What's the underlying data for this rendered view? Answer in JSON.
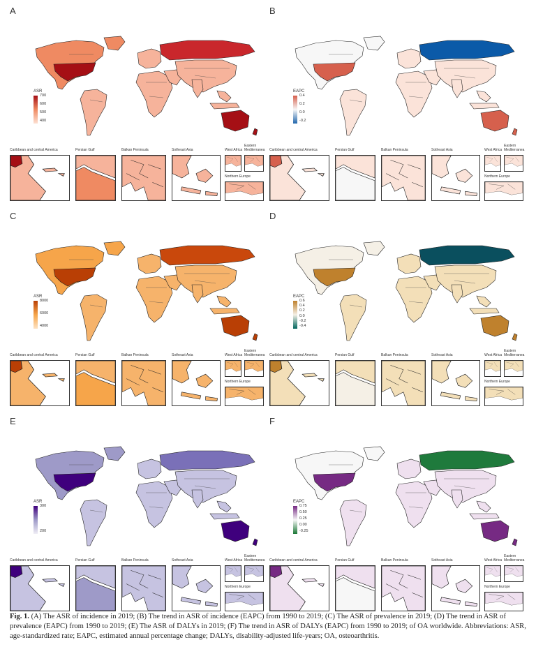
{
  "panels": [
    {
      "letter": "A",
      "legend_title": "ASR",
      "ticks": [
        "700",
        "600",
        "500",
        "400"
      ],
      "colors": {
        "low": "#fde0d2",
        "mid": "#ef8a62",
        "high": "#a50f15",
        "land": "#f6b39b",
        "north": "#c9272c"
      }
    },
    {
      "letter": "B",
      "legend_title": "EAPC",
      "ticks": [
        "0.4",
        "0.2",
        "0.0",
        "-0.2"
      ],
      "colors": {
        "low": "#2166ac",
        "mid": "#f7f7f7",
        "high": "#d6604d",
        "land": "#fbe3d9",
        "north": "#0b5aa8"
      }
    },
    {
      "letter": "C",
      "legend_title": "ASR",
      "ticks": [
        "8000",
        "6000",
        "4000"
      ],
      "colors": {
        "low": "#fde3c3",
        "mid": "#f6a54a",
        "high": "#b93f05",
        "land": "#f6b36b",
        "north": "#c9480c"
      }
    },
    {
      "letter": "D",
      "legend_title": "EAPC",
      "ticks": [
        "0.6",
        "0.4",
        "0.2",
        "0.0",
        "-0.2",
        "-0.4"
      ],
      "colors": {
        "low": "#01665e",
        "mid": "#f5f0e6",
        "high": "#bf812d",
        "land": "#f3dfb8",
        "north": "#0a4f5e"
      }
    },
    {
      "letter": "E",
      "legend_title": "ASR",
      "ticks": [
        "300",
        "200"
      ],
      "colors": {
        "low": "#efedf5",
        "mid": "#9e9ac8",
        "high": "#3f007d",
        "land": "#c6c3e1",
        "north": "#7a70b8"
      }
    },
    {
      "letter": "F",
      "legend_title": "EAPC",
      "ticks": [
        "0.75",
        "0.50",
        "0.25",
        "0.00",
        "-0.25"
      ],
      "colors": {
        "low": "#1b7837",
        "mid": "#f7f7f7",
        "high": "#762a83",
        "land": "#efe0ef",
        "north": "#1f7a3c"
      }
    }
  ],
  "insets": {
    "caribbean": "Caribbean and central America",
    "persian_gulf": "Persian Gulf",
    "balkan": "Balkan Peninsula",
    "southeast_asia": "Sotheast Asia",
    "west_africa": "West Africa",
    "eastern_med": "Eastern Mediterranea",
    "northern_europe": "Northern Europe"
  },
  "caption": {
    "label": "Fig. 1.",
    "text": "(A) The ASR of incidence in 2019; (B) The trend in ASR of incidence (EAPC) from 1990 to 2019; (C) The ASR of prevalence in 2019; (D) The trend in ASR of prevalence (EAPC) from 1990 to 2019; (E) The ASR of DALYs in 2019; (F) The trend in ASR of DALYs (EAPC) from 1990 to 2019; of OA worldwide. Abbreviations: ASR, age-standardized rate; EAPC, estimated annual percentage change; DALYs, disability-adjusted life-years; OA, osteoarthritis."
  }
}
